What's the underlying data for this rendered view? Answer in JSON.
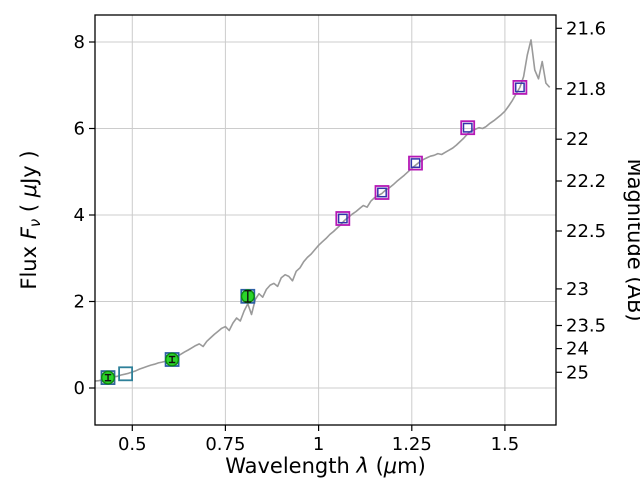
{
  "chart_data": {
    "type": "line+scatter",
    "title": "",
    "xlabel_segments": [
      {
        "t": "Wavelength  ",
        "italic": false
      },
      {
        "t": "λ",
        "italic": true
      },
      {
        "t": " (",
        "italic": false
      },
      {
        "t": "μ",
        "italic": true
      },
      {
        "t": "m)",
        "italic": false
      }
    ],
    "ylabel_left_segments": [
      {
        "t": "Flux  ",
        "italic": false
      },
      {
        "t": "F",
        "italic": true
      },
      {
        "t": "ν",
        "italic": true,
        "sub": true
      },
      {
        "t": "  ( ",
        "italic": false
      },
      {
        "t": "μ",
        "italic": true
      },
      {
        "t": "Jy )",
        "italic": false
      }
    ],
    "ylabel_right": "Magnitude (AB)",
    "xlim": [
      0.4,
      1.637
    ],
    "ylim_flux": [
      -0.855,
      8.625
    ],
    "grid": true,
    "legend": "none",
    "x_ticks": [
      {
        "v": 0.5,
        "label": "0.5"
      },
      {
        "v": 0.75,
        "label": "0.75"
      },
      {
        "v": 1.0,
        "label": "1"
      },
      {
        "v": 1.25,
        "label": "1.25"
      },
      {
        "v": 1.5,
        "label": "1.5"
      }
    ],
    "y_ticks_left": [
      {
        "v": 0,
        "label": "0"
      },
      {
        "v": 2,
        "label": "2"
      },
      {
        "v": 4,
        "label": "4"
      },
      {
        "v": 6,
        "label": "6"
      },
      {
        "v": 8,
        "label": "8"
      }
    ],
    "y_ticks_right": [
      {
        "flux": 8.318,
        "label": "21.6"
      },
      {
        "flux": 6.918,
        "label": "21.8"
      },
      {
        "flux": 5.754,
        "label": "22"
      },
      {
        "flux": 4.786,
        "label": "22.2"
      },
      {
        "flux": 3.631,
        "label": "22.5"
      },
      {
        "flux": 2.291,
        "label": "23"
      },
      {
        "flux": 1.445,
        "label": "23.5"
      },
      {
        "flux": 0.912,
        "label": "24"
      },
      {
        "flux": 0.363,
        "label": "25"
      }
    ],
    "colors": {
      "spectrum": "#9a9a9a",
      "grid": "#cccccc",
      "spine": "#000000",
      "circle_fill": "#2bd42b",
      "circle_edge": "#0c8a0c",
      "errorbar": "#111111"
    },
    "series": {
      "model_spectrum": {
        "type": "line",
        "color": "#9a9a9a",
        "x_start": 0.4,
        "x_step": 0.01,
        "flux": [
          0.16,
          0.17,
          0.19,
          0.22,
          0.23,
          0.26,
          0.27,
          0.3,
          0.32,
          0.34,
          0.37,
          0.4,
          0.44,
          0.47,
          0.5,
          0.53,
          0.55,
          0.58,
          0.6,
          0.62,
          0.65,
          0.69,
          0.73,
          0.78,
          0.83,
          0.88,
          0.93,
          0.98,
          1.02,
          0.96,
          1.08,
          1.16,
          1.24,
          1.31,
          1.38,
          1.42,
          1.33,
          1.5,
          1.62,
          1.55,
          1.78,
          1.95,
          1.7,
          2.05,
          2.18,
          2.1,
          2.28,
          2.38,
          2.42,
          2.35,
          2.55,
          2.62,
          2.58,
          2.48,
          2.7,
          2.78,
          2.92,
          3.02,
          3.1,
          3.2,
          3.3,
          3.38,
          3.46,
          3.55,
          3.62,
          3.7,
          3.78,
          3.88,
          3.95,
          4.02,
          4.08,
          4.15,
          4.22,
          4.18,
          4.32,
          4.4,
          4.45,
          4.5,
          4.58,
          4.63,
          4.7,
          4.78,
          4.85,
          4.92,
          5.0,
          5.08,
          5.15,
          5.22,
          5.28,
          5.32,
          5.36,
          5.38,
          5.42,
          5.4,
          5.45,
          5.5,
          5.55,
          5.62,
          5.7,
          5.78,
          5.88,
          5.95,
          5.98,
          6.02,
          6.0,
          6.05,
          6.12,
          6.18,
          6.25,
          6.32,
          6.4,
          6.52,
          6.65,
          6.8,
          6.95,
          7.2,
          7.7,
          8.05,
          7.35,
          7.15,
          7.55,
          7.05,
          6.95
        ]
      },
      "observed_photometry": {
        "type": "scatter-circle",
        "points": [
          {
            "x": 0.435,
            "y": 0.24,
            "yerr": 0.07
          },
          {
            "x": 0.607,
            "y": 0.66,
            "yerr": 0.07
          },
          {
            "x": 0.81,
            "y": 2.12,
            "yerr": 0.13
          }
        ]
      },
      "model_photometry": {
        "type": "scatter-square",
        "points": [
          {
            "x": 0.435,
            "y": 0.24,
            "edge": "#336699"
          },
          {
            "x": 0.482,
            "y": 0.33,
            "edge": "#2e8099"
          },
          {
            "x": 0.607,
            "y": 0.66,
            "edge": "#2d5fa6"
          },
          {
            "x": 0.81,
            "y": 2.12,
            "edge": "#2d5fa6"
          },
          {
            "x": 1.065,
            "y": 3.92,
            "edge": "#b518b5",
            "edge2": "#3333aa"
          },
          {
            "x": 1.17,
            "y": 4.52,
            "edge": "#b518b5",
            "edge2": "#3333aa"
          },
          {
            "x": 1.26,
            "y": 5.2,
            "edge": "#b518b5",
            "edge2": "#3333aa"
          },
          {
            "x": 1.4,
            "y": 6.02,
            "edge": "#b518b5",
            "edge2": "#3333aa"
          },
          {
            "x": 1.54,
            "y": 6.95,
            "edge": "#b518b5",
            "edge2": "#3333aa"
          }
        ]
      }
    }
  }
}
